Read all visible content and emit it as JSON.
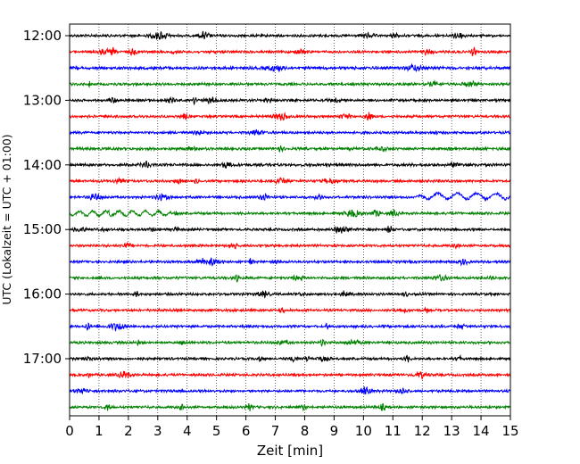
{
  "chart_data": {
    "type": "line",
    "title": "",
    "xlabel": "Zeit  [min]",
    "ylabel": "UTC (Lokalzeit = UTC + 01:00)",
    "xlim": [
      0,
      15
    ],
    "x_ticks": [
      0,
      1,
      2,
      3,
      4,
      5,
      6,
      7,
      8,
      9,
      10,
      11,
      12,
      13,
      14,
      15
    ],
    "y_tick_labels": [
      "12:00",
      "13:00",
      "14:00",
      "15:00",
      "16:00",
      "17:00"
    ],
    "y_tick_times": [
      "12:00",
      "13:00",
      "14:00",
      "15:00",
      "16:00",
      "17:00"
    ],
    "grid": "vertical dotted at each minute",
    "colors_cycle": [
      "#000000",
      "#ff0000",
      "#0000ff",
      "#008000"
    ],
    "traces": [
      {
        "start": "12:00",
        "color": "#000000",
        "amp": 1.0
      },
      {
        "start": "12:15",
        "color": "#ff0000",
        "amp": 1.0
      },
      {
        "start": "12:30",
        "color": "#0000ff",
        "amp": 1.2
      },
      {
        "start": "12:45",
        "color": "#008000",
        "amp": 1.0
      },
      {
        "start": "13:00",
        "color": "#000000",
        "amp": 1.0
      },
      {
        "start": "13:15",
        "color": "#ff0000",
        "amp": 1.0
      },
      {
        "start": "13:30",
        "color": "#0000ff",
        "amp": 1.0
      },
      {
        "start": "13:45",
        "color": "#008000",
        "amp": 1.1
      },
      {
        "start": "14:00",
        "color": "#000000",
        "amp": 1.1
      },
      {
        "start": "14:15",
        "color": "#ff0000",
        "amp": 1.0
      },
      {
        "start": "14:30",
        "color": "#0000ff",
        "amp": 1.0,
        "event": "late"
      },
      {
        "start": "14:45",
        "color": "#008000",
        "amp": 1.0,
        "event": "early"
      },
      {
        "start": "15:00",
        "color": "#000000",
        "amp": 1.0
      },
      {
        "start": "15:15",
        "color": "#ff0000",
        "amp": 1.0
      },
      {
        "start": "15:30",
        "color": "#0000ff",
        "amp": 1.0
      },
      {
        "start": "15:45",
        "color": "#008000",
        "amp": 1.0
      },
      {
        "start": "16:00",
        "color": "#000000",
        "amp": 1.0
      },
      {
        "start": "16:15",
        "color": "#ff0000",
        "amp": 1.0
      },
      {
        "start": "16:30",
        "color": "#0000ff",
        "amp": 1.0
      },
      {
        "start": "16:45",
        "color": "#008000",
        "amp": 1.0
      },
      {
        "start": "17:00",
        "color": "#000000",
        "amp": 1.0
      },
      {
        "start": "17:15",
        "color": "#ff0000",
        "amp": 1.0
      },
      {
        "start": "17:30",
        "color": "#0000ff",
        "amp": 1.0
      },
      {
        "start": "17:45",
        "color": "#008000",
        "amp": 1.0
      }
    ]
  }
}
